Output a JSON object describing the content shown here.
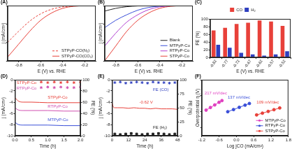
{
  "chart_data": [
    {
      "label": "(A)",
      "type": "line",
      "xlabel": "E (V) vs. RHE",
      "ylabel": "j (mA/cm²)",
      "xlim": [
        -0.9,
        -0.1
      ],
      "xticks": [
        -0.8,
        -0.6,
        -0.4,
        -0.2
      ],
      "ylim": [
        -30,
        0
      ],
      "yticks": [
        -30,
        -20,
        -10,
        0
      ],
      "tick_labels": "x",
      "grid": false,
      "legend": "lower right",
      "series": [
        {
          "name": "STPyP-CO(N₂)",
          "color": "#e8413a",
          "line_style": "dashed",
          "marker": "none",
          "x": [
            -0.9,
            -0.8,
            -0.7,
            -0.6,
            -0.5,
            -0.4,
            -0.3,
            -0.2,
            -0.1
          ],
          "values": [
            -20,
            -14,
            -8.5,
            -4.5,
            -2,
            -0.7,
            -0.2,
            0,
            0
          ]
        },
        {
          "name": "STPyP-CO(CO₂)",
          "color": "#e8413a",
          "line_style": "solid",
          "marker": "none",
          "x": [
            -0.9,
            -0.8,
            -0.7,
            -0.6,
            -0.5,
            -0.4,
            -0.3,
            -0.2,
            -0.1
          ],
          "values": [
            -28,
            -21,
            -14,
            -8,
            -4,
            -1.5,
            -0.4,
            -0.1,
            0
          ]
        }
      ]
    },
    {
      "label": "(B)",
      "type": "line",
      "xlabel": "E (V) vs. RHE",
      "ylabel": "j (mA/cm²)",
      "xlim": [
        -0.9,
        -0.1
      ],
      "xticks": [
        -0.8,
        -0.6,
        -0.4,
        -0.2
      ],
      "ylim": [
        -30,
        0
      ],
      "yticks": [
        -30,
        -20,
        -10,
        0
      ],
      "tick_labels": "x",
      "grid": false,
      "legend": "lower right",
      "series": [
        {
          "name": "Blank",
          "color": "#222222",
          "line_style": "solid",
          "marker": "none",
          "x": [
            -0.9,
            -0.8,
            -0.7,
            -0.6,
            -0.5,
            -0.4,
            -0.3,
            -0.2,
            -0.1
          ],
          "values": [
            -3,
            -1.5,
            -0.6,
            -0.2,
            -0.1,
            0,
            0,
            0,
            0
          ]
        },
        {
          "name": "MTPyP-Co",
          "color": "#3a4fd8",
          "line_style": "solid",
          "marker": "none",
          "x": [
            -0.9,
            -0.8,
            -0.7,
            -0.6,
            -0.5,
            -0.4,
            -0.3,
            -0.2,
            -0.1
          ],
          "values": [
            -12,
            -8,
            -5,
            -2.5,
            -1,
            -0.3,
            -0.1,
            0,
            0
          ]
        },
        {
          "name": "RTPyP-Co",
          "color": "#b03fd0",
          "line_style": "solid",
          "marker": "none",
          "x": [
            -0.9,
            -0.8,
            -0.7,
            -0.6,
            -0.5,
            -0.4,
            -0.3,
            -0.2,
            -0.1
          ],
          "values": [
            -22,
            -15,
            -9,
            -5,
            -2.2,
            -0.7,
            -0.2,
            0,
            0
          ]
        },
        {
          "name": "STPyP-Co",
          "color": "#e8413a",
          "line_style": "solid",
          "marker": "none",
          "x": [
            -0.9,
            -0.8,
            -0.7,
            -0.6,
            -0.5,
            -0.4,
            -0.3,
            -0.2,
            -0.1
          ],
          "values": [
            -30,
            -22,
            -14,
            -8,
            -4,
            -1.5,
            -0.4,
            -0.1,
            0
          ]
        }
      ]
    },
    {
      "label": "(C)",
      "type": "bar",
      "xlabel": "E (V) vs. RHE",
      "ylabel": "FE (%)",
      "categories": [
        "-0.82",
        "-0.77",
        "-0.72",
        "-0.67",
        "-0.62",
        "-0.57",
        "-0.52"
      ],
      "ylim": [
        0,
        100
      ],
      "yticks": [
        0,
        20,
        40,
        60,
        80,
        100
      ],
      "grid": false,
      "legend": "top",
      "series": [
        {
          "name": "CO",
          "color": "#e8413a",
          "values": [
            70,
            77,
            87,
            90,
            96,
            93,
            82
          ]
        },
        {
          "name": "H₂",
          "color": "#2f3fbf",
          "values": [
            33,
            25,
            12,
            8,
            5,
            8,
            16
          ]
        }
      ]
    },
    {
      "label": "(D)",
      "type": "line",
      "xlabel": "Time (h)",
      "ylabel": "j (mA/cm²)",
      "y2label": "FE (%)",
      "xlim": [
        0,
        2
      ],
      "xticks": [
        {
          "value": 0,
          "label": "0.0"
        },
        0.5,
        {
          "value": 1,
          "label": "1.0"
        },
        1.5,
        {
          "value": 2,
          "label": "2.0"
        }
      ],
      "ylim": [
        -10,
        0
      ],
      "yticks": [
        -10,
        -8,
        -6,
        -4,
        -2,
        0
      ],
      "y2lim": [
        0,
        100
      ],
      "y2ticks": [
        0,
        20,
        40,
        60,
        80,
        100
      ],
      "grid": false,
      "series": [
        {
          "color": "#e8413a",
          "line_style": "solid",
          "marker": "none",
          "x": [
            0,
            0.1,
            0.25,
            0.5,
            1,
            1.5,
            2
          ],
          "values": [
            -3.2,
            -3.8,
            -4,
            -4,
            -4.1,
            -4.1,
            -4.1
          ]
        },
        {
          "color": "#d04fb0",
          "line_style": "solid",
          "marker": "none",
          "x": [
            0,
            0.1,
            0.25,
            0.5,
            1,
            1.5,
            2
          ],
          "values": [
            -5,
            -5.4,
            -5.5,
            -5.5,
            -5.5,
            -5.6,
            -5.6
          ]
        },
        {
          "color": "#3a4fd8",
          "line_style": "solid",
          "marker": "none",
          "x": [
            0,
            0.1,
            0.25,
            0.5,
            1,
            1.5,
            2
          ],
          "values": [
            -7.6,
            -8,
            -8.1,
            -8.1,
            -8.1,
            -8.2,
            -8.2
          ]
        },
        {
          "type": "scatter",
          "axis": "y2",
          "color": "#e8413a",
          "marker": "star",
          "x": [
            0.8,
            1.0,
            1.2,
            1.4,
            1.6,
            1.8,
            2.0
          ],
          "values": [
            96,
            95,
            96,
            95,
            96,
            95,
            96
          ]
        },
        {
          "type": "scatter",
          "axis": "y2",
          "color": "#d04fb0",
          "marker": "star",
          "x": [
            0.8,
            1.0,
            1.2,
            1.4,
            1.6,
            1.8,
            2.0
          ],
          "values": [
            86,
            87,
            86,
            87,
            86,
            86,
            87
          ]
        }
      ],
      "annotations": [
        {
          "text": "STPyP-Co",
          "x": 0.05,
          "y": -0.5,
          "color": "#e8413a"
        },
        {
          "text": "RTPyP-Co",
          "x": 0.05,
          "y": -1.5,
          "color": "#d04fb0"
        },
        {
          "text": "STPyP-Co",
          "x": 1.0,
          "y": -3.2,
          "color": "#e8413a"
        },
        {
          "text": "RTPyP-Co",
          "x": 1.0,
          "y": -4.8,
          "color": "#d04fb0"
        },
        {
          "text": "MTPyP-Co",
          "x": 1.0,
          "y": -7.2,
          "color": "#3a4fd8"
        }
      ]
    },
    {
      "label": "(E)",
      "type": "line",
      "xlabel": "Time (h)",
      "ylabel": "j (mA/cm²)",
      "y2label": "FE (%)",
      "xlim": [
        0,
        48
      ],
      "xticks": [
        0,
        12,
        24,
        36,
        48
      ],
      "ylim": [
        -10,
        0
      ],
      "yticks": [
        -10,
        -8,
        -6,
        -4,
        -2,
        0
      ],
      "y2lim": [
        0,
        100
      ],
      "y2ticks": [
        0,
        25,
        50,
        75,
        100
      ],
      "grid": false,
      "series": [
        {
          "color": "#e8413a",
          "line_style": "solid",
          "marker": "none",
          "x": [
            0,
            1,
            2,
            4,
            8,
            12,
            16,
            20,
            24,
            28,
            32,
            36,
            40,
            44,
            48
          ],
          "values": [
            -4.2,
            -4.9,
            -5,
            -5,
            -5,
            -5.1,
            -5,
            -5.1,
            -5.1,
            -5.2,
            -5.1,
            -5.2,
            -5.2,
            -5.2,
            -5.3
          ]
        },
        {
          "type": "scatter",
          "axis": "y2",
          "color": "#2f3fbf",
          "marker": "star",
          "x": [
            2,
            6,
            10,
            14,
            18,
            22,
            26,
            30,
            34,
            38,
            42,
            46
          ],
          "values": [
            95,
            96,
            94,
            95,
            96,
            95,
            94,
            96,
            95,
            95,
            94,
            95
          ]
        },
        {
          "type": "scatter",
          "axis": "y2",
          "color": "#222222",
          "marker": "square",
          "x": [
            2,
            6,
            10,
            14,
            18,
            22,
            26,
            30,
            34,
            38,
            42,
            46
          ],
          "values": [
            3,
            2,
            3,
            4,
            3,
            2,
            3,
            3,
            4,
            3,
            2,
            3
          ]
        }
      ],
      "annotations": [
        {
          "text": "FE (CO)",
          "x": 30,
          "y": -1.8,
          "color": "#2f3fbf"
        },
        {
          "text": "-0.62 V",
          "x": 20,
          "y": -4.0,
          "color": "#e8413a"
        },
        {
          "text": "FE (H₂)",
          "x": 30,
          "y": -8.5,
          "color": "#222222"
        }
      ]
    },
    {
      "label": "(F)",
      "type": "line",
      "xlabel": "Log jCO (mA/cm²)",
      "ylabel": "Overpotential η (V)",
      "xlim": [
        -1.2,
        1.8
      ],
      "xticks": [
        -1.2,
        -0.6,
        {
          "value": 0,
          "label": "0.0"
        },
        0.6,
        1.2,
        1.8
      ],
      "ylim": [
        0.1,
        0.8
      ],
      "yticks": [
        0.2,
        0.4,
        0.6,
        0.8
      ],
      "tick_labels": "x",
      "grid": false,
      "legend": "lower right",
      "series": [
        {
          "name": "MTPyP-Co",
          "color": "#e040c0",
          "line_style": "solid",
          "marker": "circle",
          "x": [
            -1.05,
            -0.9,
            -0.75,
            -0.6,
            -0.5
          ],
          "values": [
            0.42,
            0.453,
            0.485,
            0.518,
            0.539
          ]
        },
        {
          "name": "RTPyP-Co",
          "color": "#3a4fd8",
          "line_style": "solid",
          "marker": "circle",
          "x": [
            -0.3,
            -0.1,
            0.1,
            0.3,
            0.45
          ],
          "values": [
            0.4,
            0.427,
            0.455,
            0.482,
            0.503
          ]
        },
        {
          "name": "STPyP-Co",
          "color": "#e8413a",
          "line_style": "solid",
          "marker": "circle",
          "x": [
            0.7,
            0.9,
            1.1,
            1.3,
            1.5
          ],
          "values": [
            0.36,
            0.382,
            0.404,
            0.425,
            0.447
          ]
        }
      ],
      "annotations": [
        {
          "text": "217 mV/dec",
          "x": -1.1,
          "y": 0.63,
          "color": "#e040c0"
        },
        {
          "text": "137 mV/dec",
          "x": -0.3,
          "y": 0.58,
          "color": "#3a4fd8"
        },
        {
          "text": "109 mV/dec",
          "x": 0.7,
          "y": 0.52,
          "color": "#e8413a"
        }
      ]
    }
  ]
}
